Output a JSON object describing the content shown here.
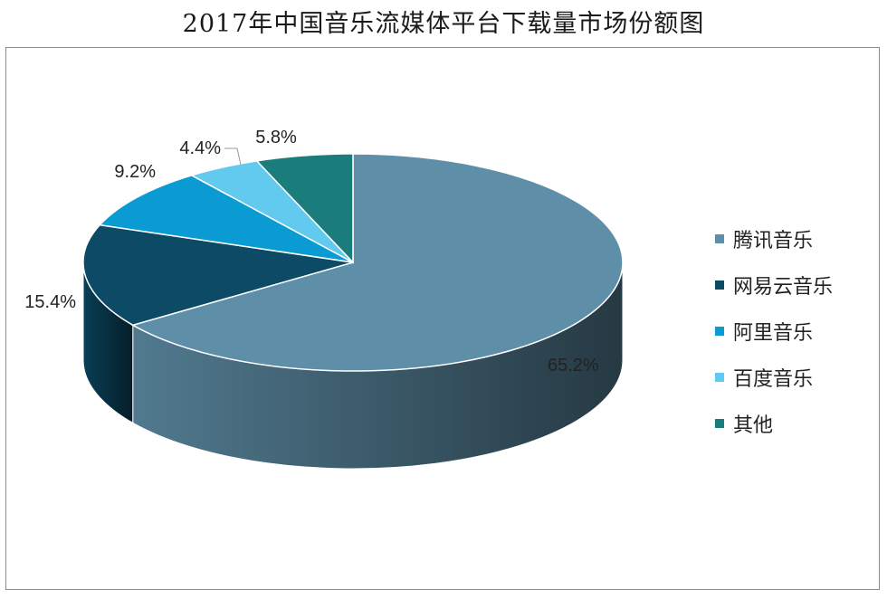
{
  "title": "2017年中国音乐流媒体平台下载量市场份额图",
  "chart_data": {
    "type": "pie",
    "title": "2017年中国音乐流媒体平台下载量市场份额图",
    "categories": [
      "腾讯音乐",
      "网易云音乐",
      "阿里音乐",
      "百度音乐",
      "其他"
    ],
    "values": [
      65.2,
      15.4,
      9.2,
      4.4,
      5.8
    ],
    "data_labels": [
      "65.2%",
      "15.4%",
      "9.2%",
      "4.4%",
      "5.8%"
    ],
    "colors": [
      "#5f8fa8",
      "#0c4a66",
      "#0a9bd2",
      "#62c9ef",
      "#1a7d7c"
    ],
    "legend_position": "right",
    "style": "3d"
  }
}
